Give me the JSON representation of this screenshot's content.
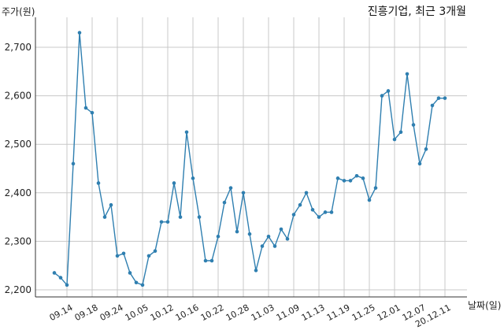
{
  "chart_data": {
    "type": "line",
    "title": "진흥기업, 최근 3개월",
    "ylabel": "주가(원)",
    "xlabel": "날짜(일)",
    "ylim": [
      2200,
      2740
    ],
    "yticks": [
      2200,
      2300,
      2400,
      2500,
      2600,
      2700
    ],
    "ytick_labels": [
      "2,200",
      "2,300",
      "2,400",
      "2,500",
      "2,600",
      "2,700"
    ],
    "xtick_labels": [
      "09.14",
      "09.18",
      "09.24",
      "10.05",
      "10.12",
      "10.16",
      "10.22",
      "10.28",
      "11.03",
      "11.09",
      "11.13",
      "11.19",
      "11.25",
      "12.01",
      "12.07",
      "20.12.11"
    ],
    "grid": true,
    "line_color": "#2f7fb0",
    "series": [
      {
        "values": [
          2235,
          2225,
          2210,
          2460,
          2730,
          2575,
          2565,
          2420,
          2350,
          2375,
          2270,
          2275,
          2235,
          2215,
          2210,
          2270,
          2280,
          2340,
          2340,
          2420,
          2350,
          2525,
          2430,
          2350,
          2260,
          2260,
          2310,
          2380,
          2410,
          2320,
          2400,
          2315,
          2240,
          2290,
          2310,
          2290,
          2325,
          2305,
          2355,
          2375,
          2400,
          2365,
          2350,
          2360,
          2360,
          2430,
          2425,
          2425,
          2435,
          2430,
          2385,
          2410,
          2600,
          2610,
          2510,
          2525,
          2645,
          2540,
          2460,
          2490,
          2580,
          2595,
          2595
        ]
      }
    ]
  }
}
